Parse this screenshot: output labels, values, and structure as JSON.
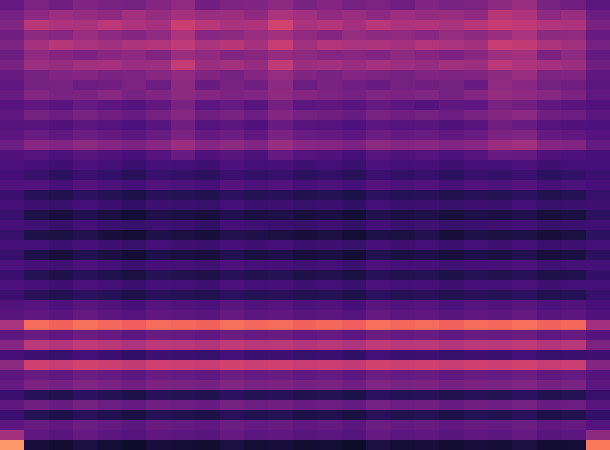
{
  "chart_data": {
    "type": "heatmap",
    "color": "magma",
    "tick_labels": false,
    "zlim": [
      0,
      100
    ],
    "values": [
      [
        30,
        36,
        33,
        37,
        35,
        34,
        38,
        41,
        33,
        36,
        37,
        40,
        35,
        38,
        34,
        36,
        33,
        37,
        35,
        36,
        40,
        43,
        35,
        33,
        28
      ],
      [
        34,
        40,
        44,
        42,
        41,
        45,
        42,
        46,
        43,
        44,
        41,
        48,
        45,
        41,
        43,
        40,
        44,
        42,
        43,
        41,
        50,
        48,
        40,
        43,
        32
      ],
      [
        37,
        50,
        48,
        47,
        51,
        48,
        46,
        55,
        50,
        47,
        48,
        57,
        47,
        49,
        46,
        50,
        48,
        49,
        47,
        50,
        54,
        52,
        49,
        48,
        35
      ],
      [
        33,
        40,
        39,
        43,
        40,
        38,
        41,
        48,
        39,
        40,
        43,
        45,
        41,
        38,
        42,
        40,
        41,
        39,
        42,
        40,
        44,
        47,
        40,
        41,
        31
      ],
      [
        36,
        46,
        50,
        47,
        45,
        48,
        49,
        52,
        47,
        50,
        46,
        54,
        45,
        49,
        47,
        48,
        46,
        49,
        47,
        45,
        54,
        53,
        48,
        45,
        34
      ],
      [
        32,
        41,
        38,
        36,
        39,
        40,
        37,
        44,
        41,
        37,
        39,
        42,
        40,
        38,
        39,
        37,
        40,
        38,
        36,
        39,
        44,
        45,
        36,
        40,
        30
      ],
      [
        35,
        44,
        42,
        45,
        46,
        43,
        44,
        53,
        43,
        45,
        42,
        52,
        44,
        45,
        43,
        46,
        44,
        42,
        45,
        44,
        51,
        48,
        46,
        44,
        33
      ],
      [
        31,
        34,
        37,
        38,
        35,
        36,
        39,
        41,
        37,
        34,
        38,
        42,
        37,
        35,
        38,
        36,
        34,
        37,
        36,
        37,
        40,
        44,
        36,
        37,
        29
      ],
      [
        29,
        34,
        35,
        32,
        33,
        36,
        32,
        40,
        31,
        35,
        33,
        40,
        32,
        35,
        33,
        31,
        34,
        33,
        34,
        31,
        41,
        39,
        34,
        33,
        28
      ],
      [
        31,
        38,
        35,
        36,
        39,
        35,
        37,
        40,
        38,
        36,
        37,
        41,
        38,
        36,
        34,
        37,
        36,
        37,
        34,
        38,
        42,
        41,
        39,
        36,
        29
      ],
      [
        27,
        29,
        27,
        30,
        28,
        26,
        29,
        35,
        28,
        30,
        27,
        34,
        28,
        29,
        27,
        30,
        28,
        26,
        29,
        28,
        35,
        33,
        29,
        27,
        25
      ],
      [
        29,
        34,
        32,
        35,
        33,
        31,
        34,
        39,
        33,
        35,
        32,
        38,
        34,
        33,
        31,
        35,
        33,
        34,
        32,
        35,
        38,
        40,
        33,
        32,
        28
      ],
      [
        26,
        27,
        25,
        28,
        26,
        24,
        27,
        33,
        26,
        28,
        25,
        31,
        27,
        26,
        24,
        28,
        26,
        27,
        25,
        27,
        33,
        31,
        26,
        25,
        24
      ],
      [
        28,
        31,
        29,
        32,
        30,
        28,
        31,
        36,
        30,
        32,
        29,
        35,
        31,
        30,
        28,
        32,
        30,
        31,
        29,
        31,
        36,
        37,
        30,
        29,
        26
      ],
      [
        32,
        39,
        37,
        40,
        38,
        36,
        39,
        44,
        38,
        40,
        37,
        43,
        39,
        38,
        36,
        40,
        38,
        39,
        37,
        39,
        44,
        45,
        38,
        37,
        30
      ],
      [
        25,
        26,
        24,
        27,
        25,
        23,
        26,
        31,
        25,
        27,
        24,
        30,
        26,
        25,
        23,
        27,
        25,
        26,
        24,
        26,
        31,
        30,
        25,
        24,
        23
      ],
      [
        24,
        23,
        21,
        24,
        22,
        20,
        23,
        22,
        21,
        24,
        22,
        23,
        21,
        22,
        20,
        24,
        22,
        23,
        21,
        23,
        22,
        24,
        21,
        22,
        22
      ],
      [
        22,
        19,
        17,
        20,
        18,
        16,
        19,
        18,
        17,
        20,
        18,
        19,
        17,
        18,
        16,
        20,
        18,
        19,
        17,
        19,
        18,
        20,
        17,
        18,
        20
      ],
      [
        25,
        25,
        23,
        26,
        24,
        22,
        25,
        24,
        23,
        26,
        24,
        25,
        23,
        24,
        22,
        26,
        24,
        25,
        23,
        25,
        24,
        26,
        23,
        24,
        23
      ],
      [
        20,
        16,
        14,
        17,
        15,
        13,
        16,
        15,
        14,
        17,
        15,
        16,
        14,
        15,
        13,
        17,
        15,
        16,
        14,
        16,
        15,
        17,
        14,
        15,
        19
      ],
      [
        23,
        21,
        19,
        22,
        20,
        18,
        21,
        20,
        19,
        22,
        20,
        21,
        19,
        20,
        18,
        22,
        20,
        21,
        19,
        21,
        20,
        22,
        19,
        20,
        21
      ],
      [
        19,
        13,
        11,
        14,
        12,
        10,
        13,
        12,
        11,
        14,
        12,
        13,
        11,
        12,
        10,
        14,
        12,
        13,
        11,
        13,
        12,
        14,
        11,
        12,
        17
      ],
      [
        23,
        21,
        19,
        22,
        20,
        19,
        21,
        20,
        18,
        22,
        21,
        20,
        19,
        21,
        18,
        22,
        20,
        21,
        19,
        20,
        21,
        22,
        19,
        20,
        21
      ],
      [
        19,
        13,
        12,
        14,
        11,
        10,
        13,
        12,
        11,
        14,
        13,
        12,
        11,
        12,
        10,
        13,
        12,
        14,
        11,
        13,
        12,
        13,
        11,
        12,
        17
      ],
      [
        23,
        22,
        20,
        23,
        21,
        19,
        22,
        21,
        20,
        23,
        21,
        22,
        20,
        21,
        19,
        23,
        21,
        22,
        20,
        22,
        21,
        23,
        20,
        21,
        22
      ],
      [
        19,
        13,
        11,
        14,
        12,
        10,
        13,
        12,
        11,
        14,
        12,
        13,
        11,
        12,
        10,
        14,
        12,
        13,
        11,
        13,
        12,
        14,
        11,
        12,
        17
      ],
      [
        24,
        23,
        21,
        24,
        22,
        20,
        23,
        22,
        21,
        24,
        22,
        23,
        21,
        22,
        20,
        24,
        22,
        23,
        21,
        23,
        22,
        24,
        21,
        22,
        22
      ],
      [
        20,
        15,
        13,
        16,
        14,
        12,
        15,
        14,
        13,
        16,
        14,
        15,
        13,
        14,
        12,
        16,
        14,
        15,
        13,
        15,
        14,
        16,
        13,
        14,
        18
      ],
      [
        24,
        23,
        21,
        24,
        22,
        20,
        23,
        22,
        21,
        24,
        22,
        23,
        21,
        22,
        20,
        24,
        22,
        23,
        21,
        23,
        22,
        24,
        21,
        22,
        22
      ],
      [
        20,
        16,
        14,
        17,
        15,
        13,
        16,
        15,
        14,
        17,
        15,
        16,
        14,
        15,
        13,
        17,
        15,
        16,
        14,
        16,
        15,
        17,
        14,
        15,
        19
      ],
      [
        25,
        26,
        24,
        27,
        25,
        23,
        26,
        25,
        24,
        27,
        25,
        26,
        24,
        25,
        23,
        27,
        25,
        26,
        24,
        26,
        25,
        27,
        24,
        25,
        23
      ],
      [
        27,
        29,
        27,
        30,
        28,
        26,
        29,
        28,
        27,
        30,
        28,
        29,
        27,
        28,
        26,
        30,
        28,
        29,
        27,
        29,
        28,
        30,
        27,
        28,
        25
      ],
      [
        47,
        69,
        67,
        70,
        68,
        66,
        69,
        68,
        67,
        70,
        68,
        69,
        67,
        68,
        66,
        70,
        68,
        69,
        67,
        69,
        68,
        70,
        67,
        68,
        45
      ],
      [
        28,
        31,
        29,
        32,
        30,
        28,
        31,
        30,
        29,
        32,
        30,
        31,
        29,
        30,
        28,
        32,
        30,
        31,
        29,
        31,
        30,
        32,
        29,
        30,
        26
      ],
      [
        38,
        51,
        49,
        52,
        50,
        48,
        51,
        50,
        49,
        52,
        50,
        51,
        49,
        50,
        48,
        52,
        50,
        51,
        49,
        51,
        50,
        52,
        49,
        50,
        36
      ],
      [
        23,
        21,
        19,
        22,
        20,
        18,
        21,
        20,
        19,
        22,
        20,
        21,
        19,
        20,
        18,
        22,
        20,
        21,
        19,
        21,
        20,
        22,
        19,
        20,
        21
      ],
      [
        40,
        56,
        54,
        57,
        55,
        53,
        56,
        55,
        54,
        57,
        55,
        56,
        54,
        55,
        53,
        57,
        55,
        56,
        54,
        56,
        55,
        57,
        54,
        55,
        38
      ],
      [
        28,
        31,
        29,
        32,
        30,
        28,
        31,
        30,
        29,
        32,
        30,
        31,
        29,
        30,
        28,
        32,
        30,
        31,
        29,
        31,
        30,
        32,
        29,
        30,
        26
      ],
      [
        30,
        36,
        34,
        37,
        35,
        33,
        36,
        35,
        34,
        37,
        35,
        36,
        34,
        35,
        33,
        37,
        35,
        36,
        34,
        36,
        35,
        37,
        34,
        35,
        28
      ],
      [
        20,
        16,
        14,
        17,
        15,
        13,
        16,
        15,
        14,
        17,
        15,
        16,
        14,
        15,
        13,
        17,
        15,
        16,
        14,
        16,
        15,
        17,
        14,
        15,
        19
      ],
      [
        29,
        33,
        31,
        34,
        32,
        30,
        33,
        32,
        31,
        34,
        32,
        33,
        31,
        32,
        30,
        34,
        32,
        33,
        31,
        33,
        32,
        34,
        31,
        32,
        27
      ],
      [
        20,
        15,
        13,
        16,
        14,
        12,
        15,
        14,
        13,
        16,
        14,
        15,
        13,
        14,
        12,
        16,
        14,
        15,
        13,
        15,
        14,
        16,
        13,
        14,
        18
      ],
      [
        28,
        31,
        29,
        32,
        30,
        28,
        31,
        30,
        29,
        32,
        30,
        31,
        29,
        30,
        28,
        32,
        30,
        31,
        29,
        31,
        30,
        32,
        29,
        30,
        26
      ],
      [
        45,
        29,
        27,
        30,
        28,
        26,
        29,
        28,
        27,
        30,
        28,
        29,
        27,
        28,
        26,
        30,
        28,
        29,
        27,
        29,
        28,
        30,
        27,
        28,
        40
      ],
      [
        78,
        11,
        9,
        12,
        10,
        8,
        11,
        10,
        9,
        12,
        10,
        11,
        9,
        10,
        8,
        12,
        10,
        11,
        9,
        11,
        10,
        12,
        9,
        10,
        72
      ]
    ]
  }
}
